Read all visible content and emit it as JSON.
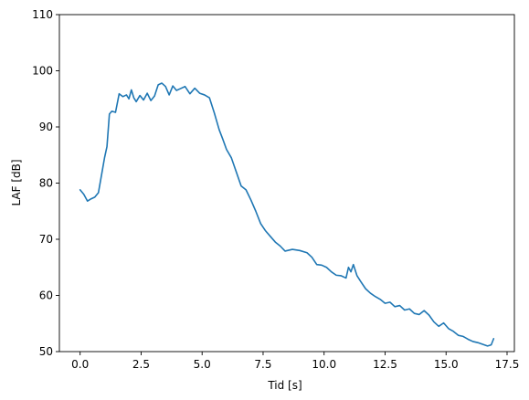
{
  "chart_data": {
    "type": "line",
    "title": "",
    "xlabel": "Tid [s]",
    "ylabel": "LAF [dB]",
    "xlim": [
      -0.85,
      17.8
    ],
    "ylim": [
      50,
      110
    ],
    "xticks": [
      0.0,
      2.5,
      5.0,
      7.5,
      10.0,
      12.5,
      15.0,
      17.5
    ],
    "xtick_labels": [
      "0.0",
      "2.5",
      "5.0",
      "7.5",
      "10.0",
      "12.5",
      "15.0",
      "17.5"
    ],
    "yticks": [
      50,
      60,
      70,
      80,
      90,
      100,
      110
    ],
    "ytick_labels": [
      "50",
      "60",
      "70",
      "80",
      "90",
      "100",
      "110"
    ],
    "grid": false,
    "series": [
      {
        "color": "#1f77b4",
        "x": [
          0.0,
          0.15,
          0.3,
          0.45,
          0.6,
          0.75,
          0.9,
          1.0,
          1.1,
          1.2,
          1.3,
          1.45,
          1.6,
          1.75,
          1.9,
          2.0,
          2.1,
          2.2,
          2.3,
          2.45,
          2.6,
          2.75,
          2.9,
          3.05,
          3.2,
          3.35,
          3.5,
          3.65,
          3.8,
          3.95,
          4.1,
          4.3,
          4.5,
          4.7,
          4.9,
          5.1,
          5.3,
          5.5,
          5.7,
          5.85,
          6.0,
          6.2,
          6.4,
          6.6,
          6.8,
          7.0,
          7.2,
          7.4,
          7.6,
          7.8,
          8.0,
          8.2,
          8.4,
          8.7,
          9.0,
          9.3,
          9.5,
          9.7,
          9.9,
          10.1,
          10.3,
          10.5,
          10.7,
          10.9,
          11.0,
          11.1,
          11.2,
          11.35,
          11.5,
          11.7,
          11.9,
          12.1,
          12.3,
          12.5,
          12.7,
          12.9,
          13.1,
          13.3,
          13.5,
          13.7,
          13.9,
          14.1,
          14.3,
          14.5,
          14.7,
          14.9,
          15.1,
          15.3,
          15.5,
          15.7,
          15.9,
          16.1,
          16.3,
          16.5,
          16.7,
          16.85,
          16.95
        ],
        "y": [
          78.8,
          78.0,
          76.8,
          77.2,
          77.5,
          78.3,
          82.0,
          84.5,
          86.5,
          92.3,
          92.8,
          92.6,
          95.9,
          95.4,
          95.7,
          95.0,
          96.6,
          95.2,
          94.5,
          95.6,
          94.8,
          96.0,
          94.7,
          95.5,
          97.5,
          97.8,
          97.2,
          95.7,
          97.3,
          96.5,
          96.8,
          97.2,
          95.9,
          96.9,
          96.0,
          95.7,
          95.2,
          92.5,
          89.5,
          87.8,
          86.0,
          84.5,
          82.0,
          79.5,
          78.8,
          77.0,
          75.0,
          72.8,
          71.5,
          70.5,
          69.5,
          68.8,
          67.9,
          68.2,
          68.0,
          67.6,
          66.8,
          65.5,
          65.4,
          65.0,
          64.2,
          63.6,
          63.5,
          63.1,
          65.0,
          64.2,
          65.5,
          63.5,
          62.5,
          61.2,
          60.4,
          59.8,
          59.3,
          58.6,
          58.8,
          58.0,
          58.2,
          57.4,
          57.6,
          56.8,
          56.6,
          57.3,
          56.5,
          55.3,
          54.5,
          55.1,
          54.1,
          53.6,
          52.9,
          52.7,
          52.2,
          51.8,
          51.6,
          51.3,
          51.0,
          51.2,
          52.3
        ]
      }
    ]
  }
}
